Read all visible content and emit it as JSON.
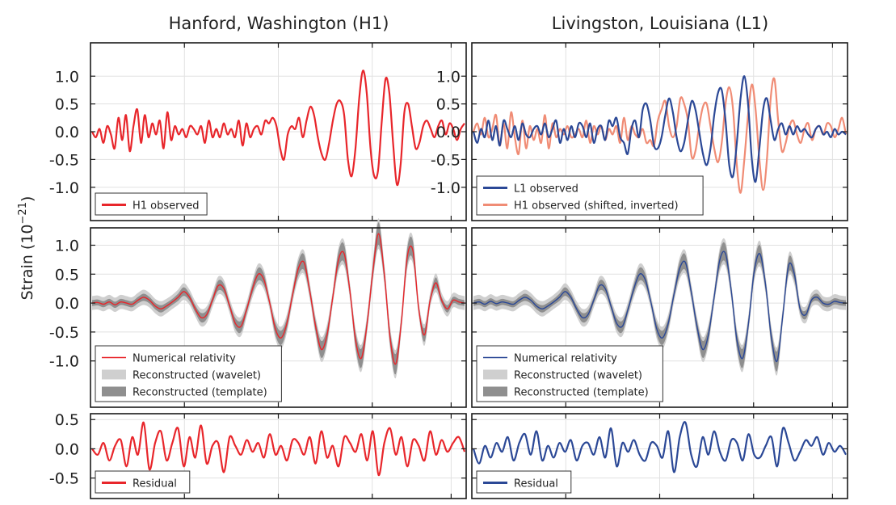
{
  "colors": {
    "h1": "#e8262b",
    "l1": "#2b4896",
    "h1_shifted": "#f08c75",
    "wavelet_band": "#cfcfcf",
    "template_band": "#8f8f8f",
    "grid": "#e1e1e1"
  },
  "ylabel": "Strain (10",
  "ylabel_exp": "−21",
  "ylabel_close": ")",
  "chart_data": [
    {
      "type": "line",
      "panel": "top-left",
      "title": "Hanford, Washington (H1)",
      "ylim": [
        -1.6,
        1.6
      ],
      "yticks": [
        "1.0",
        "0.5",
        "0.0",
        "-0.5",
        "-1.0"
      ],
      "ytick_values": [
        1.0,
        0.5,
        0.0,
        -0.5,
        -1.0
      ],
      "grid": true,
      "legend_position": "bottom-left",
      "series": [
        {
          "name": "H1 observed",
          "color": "#e8262b",
          "values": [
            0.0,
            -0.1,
            0.05,
            -0.2,
            0.1,
            -0.05,
            -0.3,
            0.25,
            -0.15,
            0.3,
            -0.35,
            0.1,
            0.4,
            -0.2,
            0.3,
            -0.1,
            0.15,
            -0.05,
            0.2,
            -0.3,
            0.35,
            -0.15,
            0.1,
            -0.05,
            0.05,
            -0.1,
            0.1,
            0.05,
            -0.05,
            0.1,
            -0.2,
            0.2,
            -0.1,
            0.05,
            -0.1,
            0.15,
            -0.05,
            0.05,
            -0.1,
            0.2,
            -0.25,
            0.15,
            -0.1,
            0.05,
            0.1,
            -0.05,
            0.2,
            0.15,
            0.25,
            0.1,
            -0.3,
            -0.5,
            -0.05,
            0.1,
            0.05,
            0.25,
            -0.1,
            0.2,
            0.45,
            0.3,
            -0.1,
            -0.4,
            -0.5,
            -0.2,
            0.2,
            0.5,
            0.55,
            0.3,
            -0.5,
            -0.8,
            -0.3,
            0.6,
            1.1,
            0.7,
            -0.3,
            -0.8,
            -0.7,
            0.2,
            0.95,
            0.7,
            -0.2,
            -0.95,
            -0.6,
            0.35,
            0.5,
            0.1,
            -0.3,
            -0.2,
            0.1,
            0.2,
            0.05,
            -0.1,
            0.1,
            0.2,
            -0.05,
            0.15,
            0.05,
            -0.15,
            0.05,
            0.15
          ]
        }
      ]
    },
    {
      "type": "line",
      "panel": "top-right",
      "title": "Livingston, Louisiana (L1)",
      "ylim": [
        -1.6,
        1.6
      ],
      "yticks": [
        "1.0",
        "0.5",
        "0.0",
        "-0.5",
        "-1.0"
      ],
      "ytick_values": [
        1.0,
        0.5,
        0.0,
        -0.5,
        -1.0
      ],
      "grid": true,
      "legend_position": "bottom-left",
      "series": [
        {
          "name": "L1 observed",
          "color": "#2b4896",
          "values": [
            0.0,
            -0.2,
            0.05,
            -0.1,
            0.2,
            -0.15,
            0.1,
            -0.25,
            0.2,
            0.05,
            -0.1,
            0.1,
            -0.15,
            0.15,
            -0.05,
            -0.1,
            0.05,
            0.1,
            -0.05,
            0.15,
            -0.1,
            0.05,
            0.2,
            -0.2,
            0.05,
            -0.15,
            0.1,
            -0.1,
            0.15,
            0.1,
            -0.1,
            0.15,
            -0.2,
            0.05,
            0.1,
            -0.15,
            0.2,
            0.1,
            0.25,
            -0.1,
            -0.2,
            -0.4,
            0.05,
            0.2,
            -0.1,
            0.4,
            0.5,
            0.2,
            -0.25,
            -0.3,
            -0.1,
            0.3,
            0.6,
            0.35,
            -0.1,
            -0.35,
            -0.2,
            0.2,
            0.55,
            0.4,
            0.0,
            -0.4,
            -0.6,
            -0.3,
            0.3,
            0.7,
            0.75,
            0.2,
            -0.6,
            -0.8,
            -0.2,
            0.6,
            1.0,
            0.5,
            -0.5,
            -0.9,
            -0.3,
            0.4,
            0.6,
            0.2,
            -0.15,
            0.05,
            0.15,
            -0.05,
            0.1,
            -0.05,
            0.1,
            0.0,
            0.05,
            -0.05,
            -0.1,
            0.05,
            0.1,
            -0.05,
            0.0,
            -0.1,
            0.05,
            -0.05,
            0.0,
            -0.05
          ]
        },
        {
          "name": "H1 observed (shifted, inverted)",
          "color": "#f08c75",
          "values": [
            0.0,
            0.15,
            -0.05,
            0.25,
            -0.1,
            0.05,
            0.3,
            -0.25,
            0.15,
            -0.3,
            0.35,
            -0.1,
            -0.4,
            0.2,
            -0.3,
            0.1,
            -0.15,
            0.05,
            -0.2,
            0.3,
            -0.3,
            0.15,
            -0.1,
            0.05,
            -0.05,
            0.1,
            -0.1,
            -0.05,
            0.05,
            -0.1,
            0.2,
            -0.2,
            0.1,
            -0.05,
            0.1,
            -0.15,
            0.05,
            -0.05,
            0.1,
            -0.2,
            0.25,
            -0.15,
            0.1,
            -0.05,
            -0.1,
            0.05,
            -0.2,
            -0.15,
            -0.25,
            0.2,
            0.4,
            0.55,
            0.1,
            -0.1,
            0.1,
            0.6,
            0.5,
            0.2,
            -0.45,
            -0.35,
            0.1,
            0.45,
            0.5,
            0.1,
            -0.3,
            -0.55,
            -0.2,
            0.5,
            0.8,
            0.4,
            -0.6,
            -1.1,
            -0.5,
            0.3,
            0.85,
            0.4,
            -0.5,
            -1.05,
            -0.5,
            0.6,
            0.95,
            0.2,
            -0.35,
            -0.2,
            0.1,
            0.2,
            -0.05,
            -0.2,
            0.05,
            0.15,
            -0.15,
            0.05,
            0.1,
            -0.05,
            0.15,
            0.1,
            -0.1,
            0.05,
            0.25,
            -0.05
          ]
        }
      ]
    },
    {
      "type": "line",
      "panel": "middle-left",
      "ylim": [
        -1.8,
        1.3
      ],
      "yticks": [
        "1.0",
        "0.5",
        "0.0",
        "-0.5",
        "-1.0"
      ],
      "ytick_values": [
        1.0,
        0.5,
        0.0,
        -0.5,
        -1.0
      ],
      "grid": true,
      "legend_position": "bottom-left",
      "series": [
        {
          "name": "Numerical relativity",
          "color": "#e8262b",
          "values": [
            0.0,
            0.01,
            -0.02,
            0.02,
            -0.03,
            0.02,
            0.0,
            -0.02,
            0.05,
            0.1,
            0.05,
            -0.05,
            -0.1,
            -0.05,
            0.02,
            0.1,
            0.2,
            0.1,
            -0.1,
            -0.25,
            -0.2,
            0.05,
            0.3,
            0.25,
            -0.05,
            -0.35,
            -0.4,
            -0.1,
            0.25,
            0.5,
            0.4,
            0.0,
            -0.45,
            -0.6,
            -0.35,
            0.15,
            0.6,
            0.7,
            0.2,
            -0.4,
            -0.8,
            -0.55,
            0.1,
            0.75,
            0.85,
            0.2,
            -0.65,
            -0.95,
            -0.35,
            0.55,
            1.2,
            0.5,
            -0.6,
            -1.05,
            -0.3,
            0.8,
            0.9,
            -0.1,
            -0.55,
            0.05,
            0.35,
            0.05,
            -0.1,
            0.05,
            0.02,
            0.0
          ]
        },
        {
          "name": "Reconstructed (wavelet)",
          "color": "#cfcfcf",
          "spread": 0.12
        },
        {
          "name": "Reconstructed (template)",
          "color": "#8f8f8f",
          "spread": 0.05
        }
      ]
    },
    {
      "type": "line",
      "panel": "middle-right",
      "ylim": [
        -1.8,
        1.3
      ],
      "yticks": [],
      "ytick_values": [
        1.0,
        0.5,
        0.0,
        -0.5,
        -1.0
      ],
      "grid": true,
      "legend_position": "bottom-left",
      "series": [
        {
          "name": "Numerical relativity",
          "color": "#2b4896",
          "values": [
            0.0,
            0.02,
            -0.02,
            0.03,
            -0.01,
            0.02,
            0.0,
            -0.02,
            0.05,
            0.1,
            0.05,
            -0.05,
            -0.1,
            -0.05,
            0.02,
            0.1,
            0.2,
            0.1,
            -0.1,
            -0.25,
            -0.2,
            0.05,
            0.3,
            0.25,
            -0.05,
            -0.35,
            -0.4,
            -0.1,
            0.25,
            0.5,
            0.4,
            0.0,
            -0.45,
            -0.6,
            -0.35,
            0.15,
            0.6,
            0.7,
            0.2,
            -0.4,
            -0.8,
            -0.55,
            0.1,
            0.75,
            0.85,
            0.2,
            -0.65,
            -0.95,
            -0.35,
            0.55,
            0.85,
            0.3,
            -0.6,
            -1.0,
            -0.2,
            0.65,
            0.5,
            -0.1,
            -0.2,
            0.05,
            0.1,
            0.0,
            -0.02,
            0.03,
            0.01,
            0.0
          ]
        },
        {
          "name": "Reconstructed (wavelet)",
          "color": "#cfcfcf",
          "spread": 0.12
        },
        {
          "name": "Reconstructed (template)",
          "color": "#8f8f8f",
          "spread": 0.05
        }
      ]
    },
    {
      "type": "line",
      "panel": "bottom-left",
      "ylim": [
        -0.85,
        0.6
      ],
      "yticks": [
        "0.5",
        "0.0",
        "-0.5"
      ],
      "ytick_values": [
        0.5,
        0.0,
        -0.5
      ],
      "grid": true,
      "legend_position": "bottom-left",
      "series": [
        {
          "name": "Residual",
          "color": "#e8262b",
          "values": [
            0.0,
            -0.1,
            0.1,
            -0.2,
            0.05,
            0.15,
            -0.3,
            0.2,
            -0.1,
            0.45,
            -0.35,
            0.1,
            0.3,
            -0.2,
            0.1,
            0.35,
            -0.3,
            0.2,
            -0.15,
            0.4,
            -0.25,
            0.05,
            0.1,
            -0.4,
            0.2,
            0.05,
            -0.1,
            0.15,
            -0.05,
            0.1,
            -0.15,
            0.25,
            -0.1,
            0.05,
            -0.2,
            0.15,
            0.1,
            -0.1,
            0.2,
            -0.25,
            0.3,
            -0.15,
            0.05,
            -0.3,
            0.2,
            0.1,
            -0.05,
            0.25,
            -0.2,
            0.3,
            -0.45,
            0.1,
            0.35,
            -0.1,
            0.2,
            -0.3,
            0.15,
            0.05,
            -0.2,
            0.3,
            -0.1,
            0.15,
            -0.05,
            0.1,
            0.2,
            -0.05
          ]
        }
      ]
    },
    {
      "type": "line",
      "panel": "bottom-right",
      "ylim": [
        -0.85,
        0.6
      ],
      "yticks": [],
      "ytick_values": [
        0.5,
        0.0,
        -0.5
      ],
      "grid": true,
      "legend_position": "bottom-left",
      "series": [
        {
          "name": "Residual",
          "color": "#2b4896",
          "values": [
            0.0,
            -0.25,
            0.05,
            -0.15,
            0.1,
            -0.05,
            0.2,
            -0.2,
            0.1,
            0.25,
            -0.1,
            0.3,
            -0.2,
            0.05,
            -0.15,
            0.1,
            -0.05,
            0.15,
            -0.2,
            0.05,
            0.1,
            -0.1,
            0.2,
            -0.15,
            0.35,
            -0.3,
            0.1,
            -0.05,
            0.15,
            -0.1,
            -0.2,
            0.1,
            0.05,
            -0.15,
            0.3,
            -0.4,
            0.2,
            0.45,
            -0.1,
            -0.3,
            0.2,
            -0.1,
            0.3,
            -0.05,
            -0.2,
            0.15,
            0.1,
            -0.2,
            0.25,
            -0.1,
            -0.15,
            0.05,
            0.2,
            -0.3,
            0.35,
            0.1,
            -0.2,
            -0.05,
            0.15,
            0.05,
            0.2,
            -0.1,
            0.1,
            -0.05,
            0.05,
            -0.1
          ]
        }
      ]
    }
  ]
}
